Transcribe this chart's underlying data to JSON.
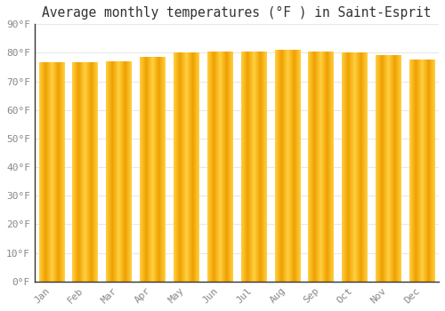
{
  "title": "Average monthly temperatures (°F ) in Saint-Esprit",
  "months": [
    "Jan",
    "Feb",
    "Mar",
    "Apr",
    "May",
    "Jun",
    "Jul",
    "Aug",
    "Sep",
    "Oct",
    "Nov",
    "Dec"
  ],
  "values": [
    76.5,
    76.5,
    77.0,
    78.5,
    80.0,
    80.5,
    80.5,
    81.0,
    80.5,
    80.0,
    79.0,
    77.5
  ],
  "bar_color_center": "#FFD040",
  "bar_color_edge": "#F0A000",
  "background_color": "#FFFFFF",
  "grid_color": "#E8E8E8",
  "text_color": "#888888",
  "axis_color": "#333333",
  "ylim": [
    0,
    90
  ],
  "yticks": [
    0,
    10,
    20,
    30,
    40,
    50,
    60,
    70,
    80,
    90
  ],
  "ytick_labels": [
    "0°F",
    "10°F",
    "20°F",
    "30°F",
    "40°F",
    "50°F",
    "60°F",
    "70°F",
    "80°F",
    "90°F"
  ],
  "title_fontsize": 10.5,
  "tick_fontsize": 8,
  "bar_width": 0.75
}
